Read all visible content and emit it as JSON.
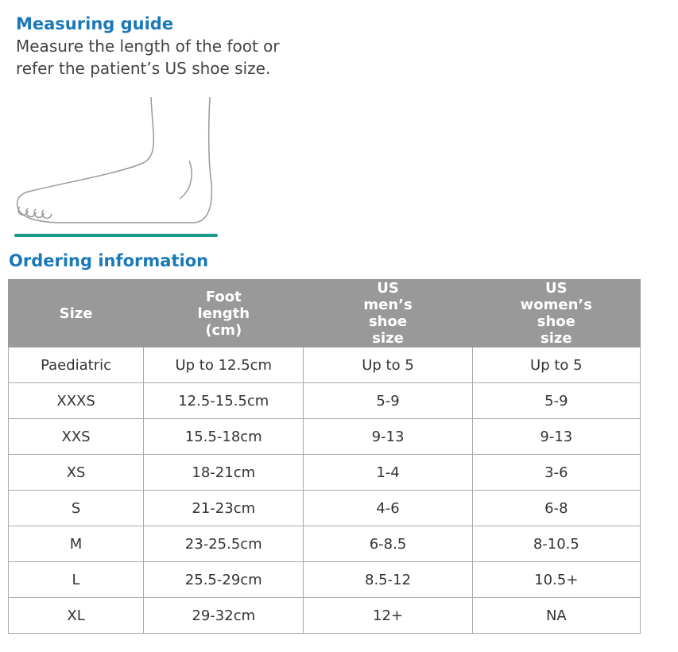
{
  "guide": {
    "title": "Measuring guide",
    "lines": [
      "Measure the length of the foot or",
      "refer the patient’s US shoe size."
    ]
  },
  "ordering": {
    "title": "Ordering information"
  },
  "table": {
    "header": [
      "Size",
      "Foot length (cm)",
      "US men’s shoe size",
      "US women’s shoe size"
    ],
    "rows": [
      [
        "Paediatric",
        "Up to 12.5cm",
        "Up to 5",
        "Up to 5"
      ],
      [
        "XXXS",
        "12.5-15.5cm",
        "5-9",
        "5-9"
      ],
      [
        "XXS",
        "15.5-18cm",
        "9-13",
        "9-13"
      ],
      [
        "XS",
        "18-21cm",
        "1-4",
        "3-6"
      ],
      [
        "S",
        "21-23cm",
        "4-6",
        "6-8"
      ],
      [
        "M",
        "23-25.5cm",
        "6-8.5",
        "8-10.5"
      ],
      [
        "L",
        "25.5-29cm",
        "8.5-12",
        "10.5+"
      ],
      [
        "XL",
        "29-32cm",
        "12+",
        "NA"
      ]
    ]
  }
}
